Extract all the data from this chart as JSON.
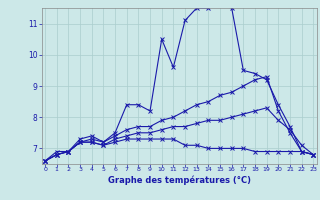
{
  "xlabel": "Graphe des températures (°C)",
  "bg_color": "#cce8e8",
  "line_color": "#1a1aaa",
  "grid_color": "#aacece",
  "xlim": [
    0,
    23
  ],
  "ylim": [
    6.5,
    11.5
  ],
  "yticks": [
    7,
    8,
    9,
    10,
    11
  ],
  "xticks": [
    0,
    1,
    2,
    3,
    4,
    5,
    6,
    7,
    8,
    9,
    10,
    11,
    12,
    13,
    14,
    15,
    16,
    17,
    18,
    19,
    20,
    21,
    22,
    23
  ],
  "series": [
    {
      "x": [
        0,
        1,
        2,
        3,
        4,
        5,
        6,
        7,
        8,
        9,
        10,
        11,
        12,
        13,
        14,
        15,
        16,
        17,
        18,
        19,
        20,
        21,
        22,
        23
      ],
      "y": [
        6.6,
        6.9,
        6.9,
        7.3,
        7.4,
        7.2,
        7.5,
        8.4,
        8.4,
        8.2,
        10.5,
        9.6,
        11.1,
        11.5,
        11.5,
        11.6,
        11.5,
        9.5,
        9.4,
        9.2,
        8.4,
        7.7,
        6.9,
        6.8
      ]
    },
    {
      "x": [
        0,
        1,
        2,
        3,
        4,
        5,
        6,
        7,
        8,
        9,
        10,
        11,
        12,
        13,
        14,
        15,
        16,
        17,
        18,
        19,
        20,
        21,
        22,
        23
      ],
      "y": [
        6.6,
        6.8,
        6.9,
        7.2,
        7.3,
        7.2,
        7.4,
        7.6,
        7.7,
        7.7,
        7.9,
        8.0,
        8.2,
        8.4,
        8.5,
        8.7,
        8.8,
        9.0,
        9.2,
        9.3,
        8.2,
        7.5,
        6.9,
        6.8
      ]
    },
    {
      "x": [
        0,
        1,
        2,
        3,
        4,
        5,
        6,
        7,
        8,
        9,
        10,
        11,
        12,
        13,
        14,
        15,
        16,
        17,
        18,
        19,
        20,
        21,
        22,
        23
      ],
      "y": [
        6.6,
        6.8,
        6.9,
        7.2,
        7.2,
        7.1,
        7.3,
        7.4,
        7.5,
        7.5,
        7.6,
        7.7,
        7.7,
        7.8,
        7.9,
        7.9,
        8.0,
        8.1,
        8.2,
        8.3,
        7.9,
        7.6,
        7.1,
        6.8
      ]
    },
    {
      "x": [
        0,
        1,
        2,
        3,
        4,
        5,
        6,
        7,
        8,
        9,
        10,
        11,
        12,
        13,
        14,
        15,
        16,
        17,
        18,
        19,
        20,
        21,
        22,
        23
      ],
      "y": [
        6.6,
        6.8,
        6.9,
        7.2,
        7.2,
        7.1,
        7.2,
        7.3,
        7.3,
        7.3,
        7.3,
        7.3,
        7.1,
        7.1,
        7.0,
        7.0,
        7.0,
        7.0,
        6.9,
        6.9,
        6.9,
        6.9,
        6.9,
        6.8
      ]
    }
  ]
}
